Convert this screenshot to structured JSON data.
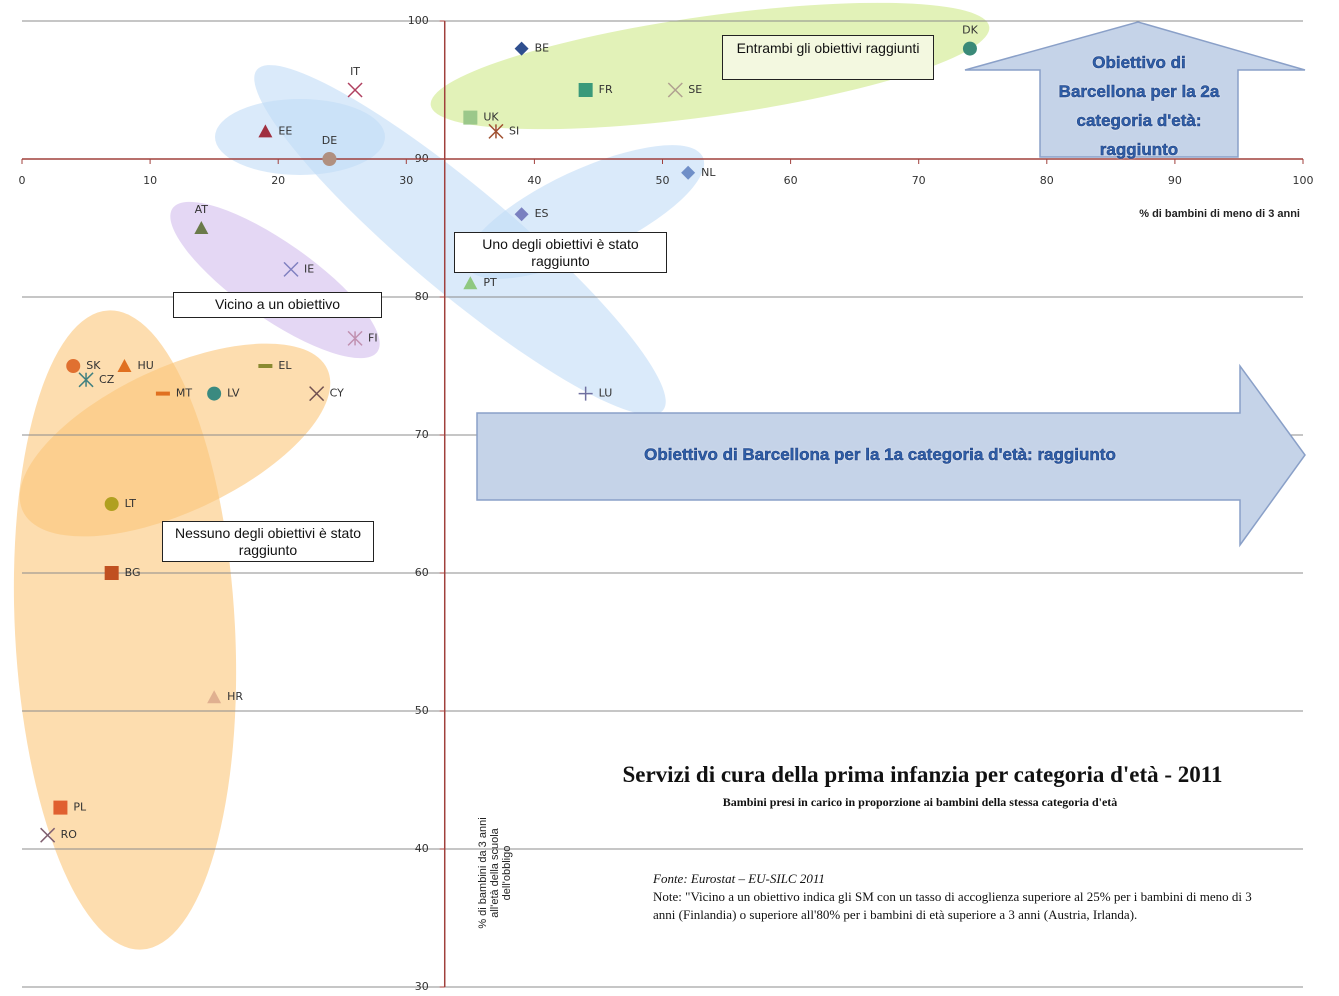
{
  "chart_data": {
    "type": "scatter",
    "title": "Servizi di cura della prima infanzia per categoria d'età - 2011",
    "subtitle": "Bambini presi in carico in proporzione ai bambini della stessa categoria d'età",
    "x_label": "% di bambini  di meno  di 3 anni",
    "y_label": "% di bambini da 3 anni all'età della scuola dell'obbligo",
    "source": "Fonte:  Eurostat – EU-SILC 2011",
    "note": "Note: \"Vicino a un obiettivo indica gli SM con un tasso di accoglienza superiore al 25% per i bambini di meno di 3 anni (Finlandia) o superiore all'80% per i bambini di età superiore a 3 anni (Austria, Irlanda).",
    "annotations": {
      "both": "Entrambi gli obiettivi raggiunti",
      "one": "Uno degli obiettivi è stato raggiunto",
      "near": "Vicino a un obiettivo",
      "none": "Nessuno degli obiettivi è stato raggiunto",
      "arrow_2": "Obiettivo di Barcellona per la 2a categoria d'età: raggiunto",
      "arrow_1": "Obiettivo di Barcellona per la 1a categoria d'età: raggiunto"
    },
    "xlim": [
      0,
      100
    ],
    "xticks": [
      0,
      10,
      20,
      30,
      40,
      50,
      60,
      70,
      80,
      90,
      100
    ],
    "ylim": [
      30,
      100
    ],
    "yticks": [
      30,
      40,
      50,
      60,
      70,
      80,
      90,
      100
    ],
    "x_axis_at": 90,
    "y_axis_at": 33,
    "grid": true,
    "points": [
      {
        "label": "BE",
        "x": 39,
        "y": 98,
        "marker": "diamond",
        "color": "#2f4f8f"
      },
      {
        "label": "DK",
        "x": 74,
        "y": 98,
        "marker": "circle",
        "color": "#3a8a78"
      },
      {
        "label": "FR",
        "x": 44,
        "y": 95,
        "marker": "square",
        "color": "#3a9a7a"
      },
      {
        "label": "SE",
        "x": 51,
        "y": 95,
        "marker": "x",
        "color": "#b0a090"
      },
      {
        "label": "UK",
        "x": 35,
        "y": 93,
        "marker": "square",
        "color": "#9bc88a"
      },
      {
        "label": "SI",
        "x": 37,
        "y": 92,
        "marker": "asterisk",
        "color": "#a05030"
      },
      {
        "label": "IT",
        "x": 26,
        "y": 95,
        "marker": "x",
        "color": "#b04060"
      },
      {
        "label": "EE",
        "x": 19,
        "y": 92,
        "marker": "triangle",
        "color": "#a03040"
      },
      {
        "label": "DE",
        "x": 24,
        "y": 90,
        "marker": "circle",
        "color": "#b09080"
      },
      {
        "label": "NL",
        "x": 52,
        "y": 89,
        "marker": "diamond",
        "color": "#6f8fc8"
      },
      {
        "label": "ES",
        "x": 39,
        "y": 86,
        "marker": "diamond",
        "color": "#7a80c0"
      },
      {
        "label": "AT",
        "x": 14,
        "y": 85,
        "marker": "triangle",
        "color": "#6a7a4a"
      },
      {
        "label": "IE",
        "x": 21,
        "y": 82,
        "marker": "x",
        "color": "#8080c0"
      },
      {
        "label": "PT",
        "x": 35,
        "y": 81,
        "marker": "triangle",
        "color": "#8fc880"
      },
      {
        "label": "FI",
        "x": 26,
        "y": 77,
        "marker": "asterisk",
        "color": "#c090b0"
      },
      {
        "label": "SK",
        "x": 4,
        "y": 75,
        "marker": "circle",
        "color": "#e07030"
      },
      {
        "label": "CZ",
        "x": 5,
        "y": 74,
        "marker": "asterisk",
        "color": "#408080"
      },
      {
        "label": "HU",
        "x": 8,
        "y": 75,
        "marker": "triangle",
        "color": "#e07020"
      },
      {
        "label": "MT",
        "x": 11,
        "y": 73,
        "marker": "dash",
        "color": "#e07020"
      },
      {
        "label": "EL",
        "x": 19,
        "y": 75,
        "marker": "dash",
        "color": "#8a8a30"
      },
      {
        "label": "LV",
        "x": 15,
        "y": 73,
        "marker": "circle",
        "color": "#3a8a80"
      },
      {
        "label": "CY",
        "x": 23,
        "y": 73,
        "marker": "x",
        "color": "#705050"
      },
      {
        "label": "LU",
        "x": 44,
        "y": 73,
        "marker": "plus",
        "color": "#7070a0"
      },
      {
        "label": "LT",
        "x": 7,
        "y": 65,
        "marker": "circle",
        "color": "#b0a020"
      },
      {
        "label": "BG",
        "x": 7,
        "y": 60,
        "marker": "square",
        "color": "#c05020"
      },
      {
        "label": "HR",
        "x": 15,
        "y": 51,
        "marker": "triangle",
        "color": "#e0b090"
      },
      {
        "label": "PL",
        "x": 3,
        "y": 43,
        "marker": "square",
        "color": "#e06030"
      },
      {
        "label": "RO",
        "x": 2,
        "y": 41,
        "marker": "x",
        "color": "#806070"
      }
    ]
  }
}
